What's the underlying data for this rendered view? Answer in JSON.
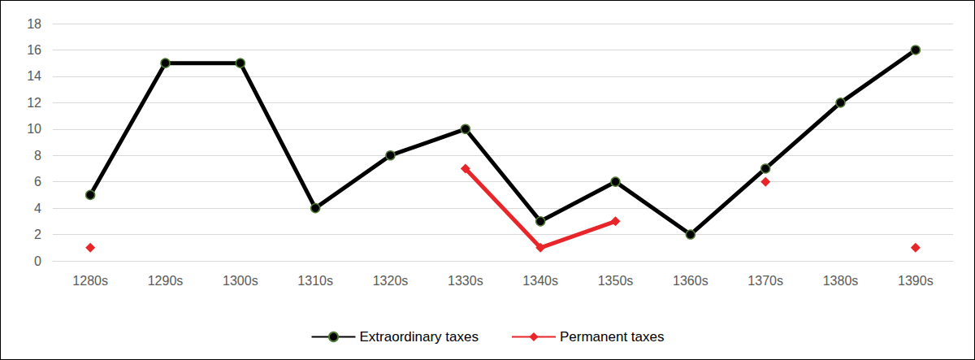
{
  "chart_data": {
    "type": "line",
    "categories": [
      "1280s",
      "1290s",
      "1300s",
      "1310s",
      "1320s",
      "1330s",
      "1340s",
      "1350s",
      "1360s",
      "1370s",
      "1380s",
      "1390s"
    ],
    "series": [
      {
        "name": "Extraordinary taxes",
        "color": "#000000",
        "marker": "circle",
        "values": [
          5,
          15,
          15,
          4,
          8,
          10,
          3,
          6,
          2,
          7,
          12,
          16
        ]
      },
      {
        "name": "Permanent taxes",
        "color": "#e8262a",
        "marker": "diamond",
        "values": [
          1,
          null,
          null,
          null,
          null,
          7,
          1,
          3,
          null,
          6,
          null,
          1
        ]
      }
    ],
    "ylim": [
      0,
      18
    ],
    "yticks": [
      0,
      2,
      4,
      6,
      8,
      10,
      12,
      14,
      16,
      18
    ],
    "grid": true,
    "legend": "bottom"
  }
}
